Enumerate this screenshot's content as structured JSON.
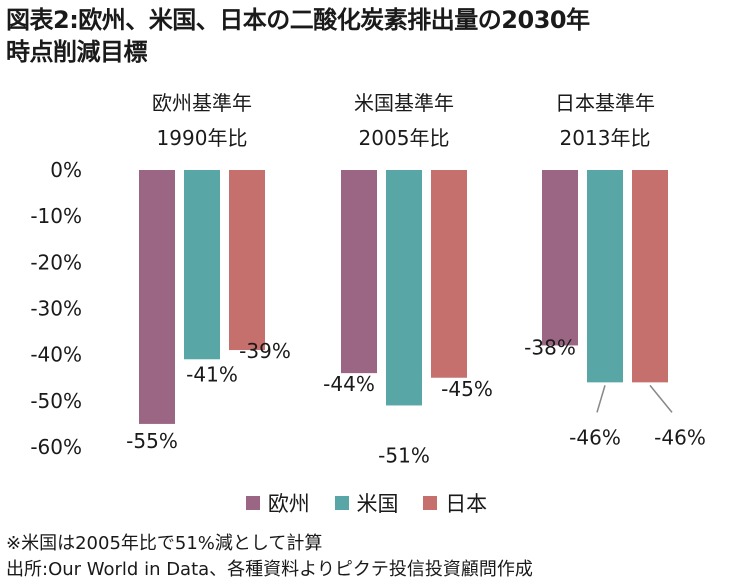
{
  "title": {
    "line1": "図表2:欧州、米国、日本の二酸化炭素排出量の2030年",
    "line2": "時点削減目標"
  },
  "chart_data": {
    "type": "bar",
    "groups": [
      {
        "line1": "欧州基準年",
        "line2": "1990年比"
      },
      {
        "line1": "米国基準年",
        "line2": "2005年比"
      },
      {
        "line1": "日本基準年",
        "line2": "2013年比"
      }
    ],
    "series": [
      {
        "name": "欧州",
        "color": "#9a6683",
        "values": [
          -55,
          -44,
          -38
        ]
      },
      {
        "name": "米国",
        "color": "#59a6a6",
        "values": [
          -41,
          -51,
          -46
        ]
      },
      {
        "name": "日本",
        "color": "#c6706e",
        "values": [
          -39,
          -45,
          -46
        ]
      }
    ],
    "data_labels": [
      [
        "-55%",
        "-41%",
        "-39%"
      ],
      [
        "-44%",
        "-51%",
        "-45%"
      ],
      [
        "-38%",
        "-46%",
        "-46%"
      ]
    ],
    "yticks": [
      0,
      -10,
      -20,
      -30,
      -40,
      -50,
      -60
    ],
    "ytick_labels": [
      "0%",
      "-10%",
      "-20%",
      "-30%",
      "-40%",
      "-50%",
      "-60%"
    ],
    "ylim": [
      -60,
      0
    ],
    "grid": false,
    "legend_position": "bottom"
  },
  "footnote": "※米国は2005年比で51%減として計算",
  "source": "出所:Our World in Data、各種資料よりピクテ投信投資顧問作成"
}
